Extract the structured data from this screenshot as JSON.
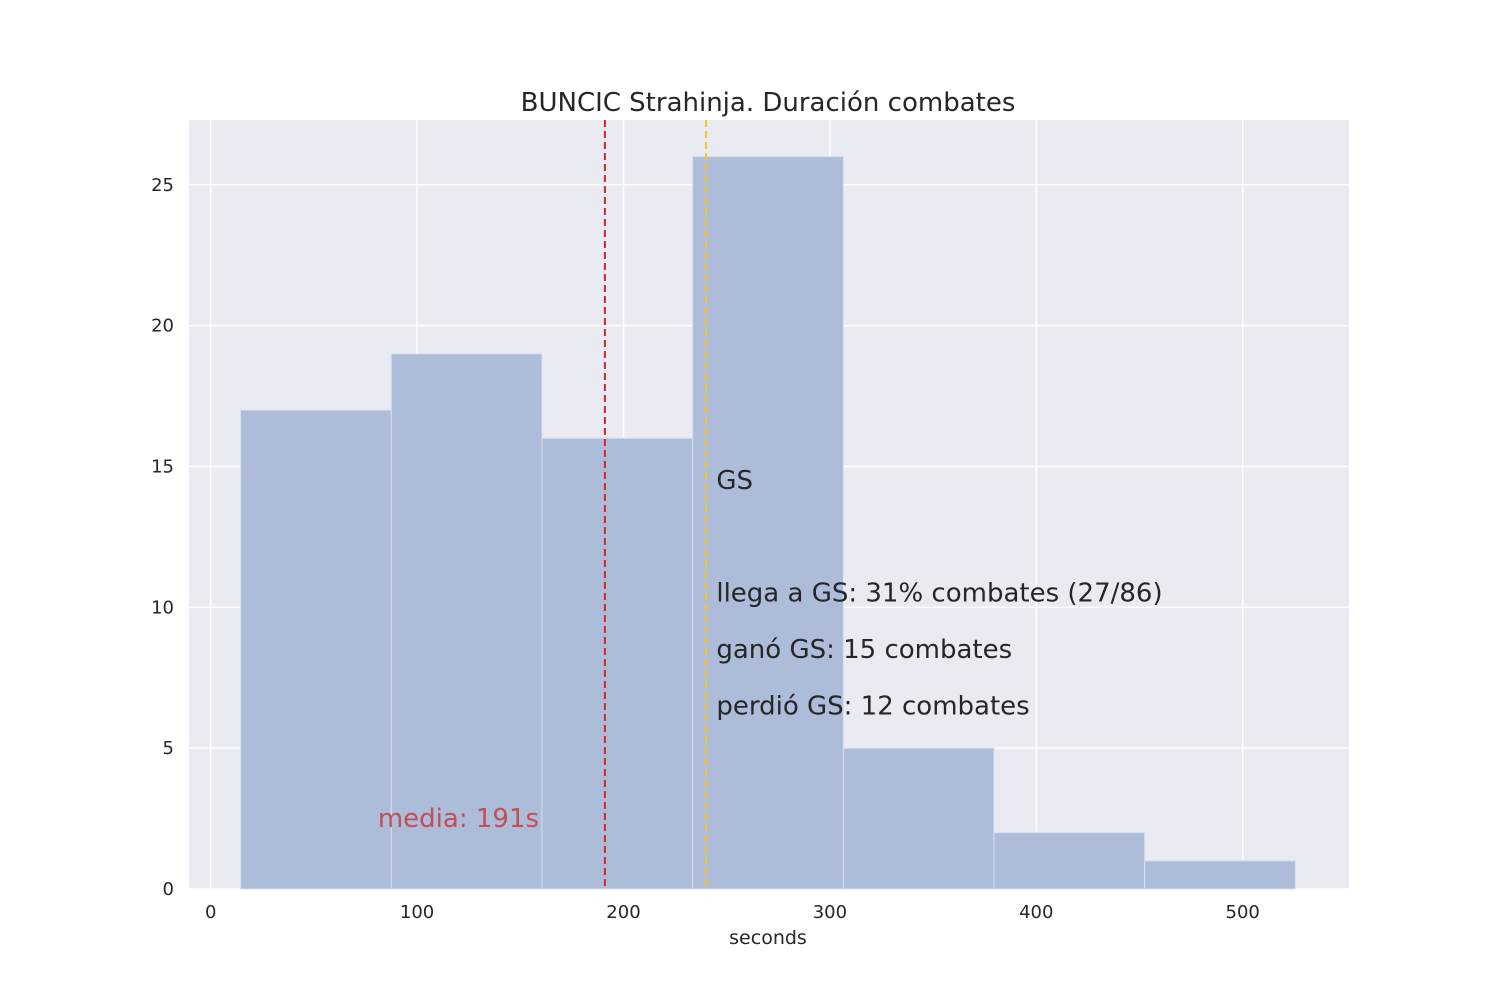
{
  "chart_data": {
    "type": "bar",
    "title": "BUNCIC Strahinja. Duración combates",
    "xlabel": "seconds",
    "ylabel": "",
    "xlim": [
      -10.5,
      551.5
    ],
    "ylim": [
      0,
      27.3
    ],
    "xticks": [
      "0",
      "100",
      "200",
      "300",
      "400",
      "500"
    ],
    "xtick_values": [
      0,
      100,
      200,
      300,
      400,
      500
    ],
    "yticks": [
      "0",
      "5",
      "10",
      "15",
      "20",
      "25"
    ],
    "ytick_values": [
      0,
      5,
      10,
      15,
      20,
      25
    ],
    "grid": true,
    "bins": [
      {
        "x0": 14.5,
        "x1": 87.5,
        "count": 17
      },
      {
        "x0": 87.5,
        "x1": 160.5,
        "count": 19
      },
      {
        "x0": 160.5,
        "x1": 233.5,
        "count": 16
      },
      {
        "x0": 233.5,
        "x1": 306.5,
        "count": 26
      },
      {
        "x0": 306.5,
        "x1": 379.5,
        "count": 5
      },
      {
        "x0": 379.5,
        "x1": 452.5,
        "count": 2
      },
      {
        "x0": 452.5,
        "x1": 525.5,
        "count": 1
      }
    ],
    "vlines": [
      {
        "x": 191,
        "color": "#d62728",
        "label": "media: 191s",
        "label_x": 81,
        "label_y": 2.2
      },
      {
        "x": 240,
        "color": "#f5c518",
        "label": "GS",
        "label_x": 245,
        "label_y": 14.2
      }
    ],
    "annotations": [
      {
        "text": "llega a GS: 31% combates (27/86)",
        "x": 245,
        "y": 10.2
      },
      {
        "text": "ganó GS: 15 combates",
        "x": 245,
        "y": 8.2
      },
      {
        "text": "perdió GS: 12 combates",
        "x": 245,
        "y": 6.2
      }
    ],
    "colors": {
      "bar": "#a9b9d7",
      "plot_bg": "#eaeaf2",
      "grid": "#ffffff",
      "mean_text": "#c44e52",
      "mean_line": "#d62728",
      "gs_line": "#f5c518"
    }
  }
}
